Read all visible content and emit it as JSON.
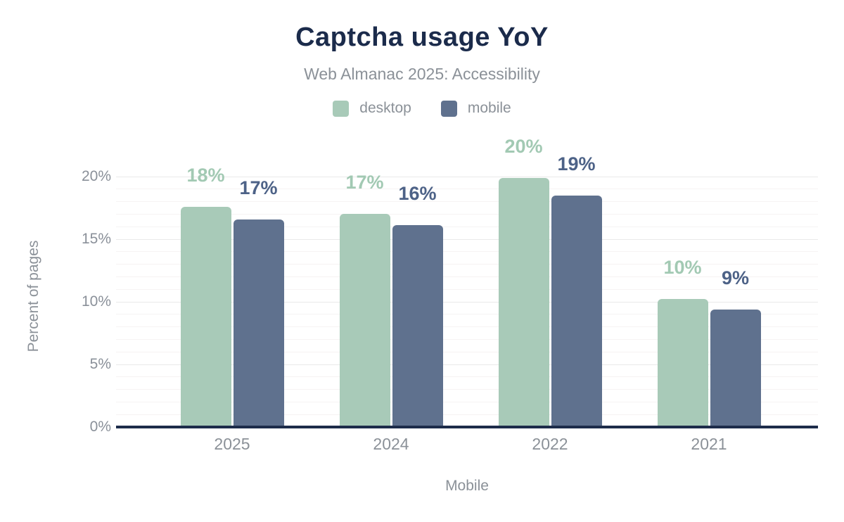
{
  "chart_data": {
    "type": "bar",
    "title": "Captcha usage YoY",
    "subtitle": "Web Almanac 2025: Accessibility",
    "categories": [
      "2025",
      "2024",
      "2022",
      "2021"
    ],
    "series": [
      {
        "name": "desktop",
        "color": "#a8cab8",
        "label_color": "#a2c9b3",
        "values": [
          17.6,
          17.0,
          19.9,
          10.2
        ],
        "labels": [
          "18%",
          "17%",
          "20%",
          "10%"
        ]
      },
      {
        "name": "mobile",
        "color": "#5f718e",
        "label_color": "#4d6287",
        "values": [
          16.6,
          16.1,
          18.5,
          9.4
        ],
        "labels": [
          "17%",
          "16%",
          "19%",
          "9%"
        ]
      }
    ],
    "xlabel": "Mobile",
    "ylabel": "Percent of pages",
    "ylim": [
      0,
      20
    ],
    "ytick_values": [
      0,
      5,
      10,
      15,
      20
    ],
    "ytick_labels": [
      "0%",
      "5%",
      "10%",
      "15%",
      "20%"
    ],
    "grid": "horizontal: minor lines every 1%, major lines every 5%",
    "legend_position": "top center",
    "bar_value_labels": "shown above each bar, colored per series"
  },
  "palette": {
    "title_color": "#1b2b4b",
    "muted_text_color": "#8b9198",
    "axis_line_color": "#1d2c4a",
    "minor_grid_color": "#f6f3f3",
    "major_grid_color": "#e9e9e9",
    "background": "#ffffff"
  }
}
